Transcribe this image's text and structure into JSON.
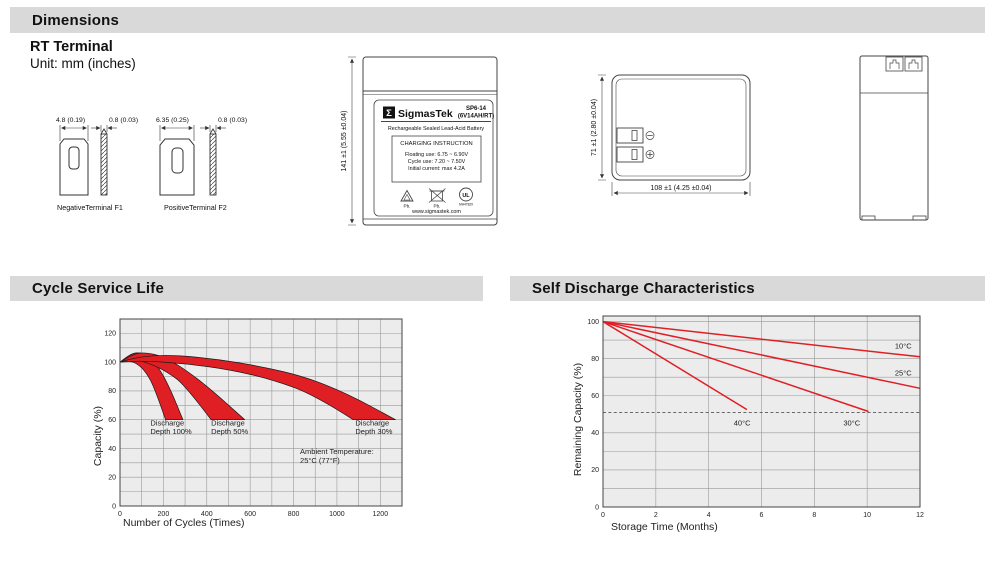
{
  "sections": {
    "dimensions_title": "Dimensions",
    "cycle_title": "Cycle Service Life",
    "self_discharge_title": "Self Discharge Characteristics"
  },
  "dimensions_block": {
    "subtitle": "RT Terminal",
    "unit_note": "Unit: mm (inches)"
  },
  "terminals": {
    "negative": {
      "caption": "NegativeTerminal F1",
      "width_dim": "4.8 (0.19)",
      "thickness_dim": "0.8 (0.03)"
    },
    "positive": {
      "caption": "PositiveTerminal F2",
      "width_dim": "6.35 (0.25)",
      "thickness_dim": "0.8 (0.03)"
    }
  },
  "front_view": {
    "height_dim": "141 ±1 (5.55 ±0.04)",
    "label": {
      "logo_glyph": "Σ",
      "brand": "SigmasTek",
      "model": "SP6-14",
      "spec": "(6V14AH/RT)",
      "type_line": "Rechargeable Sealed Lead-Acid Battery",
      "charging_title": "CHARGING INSTRUCTION",
      "charging_line1": "Floating use: 6.75 ~ 6.90V",
      "charging_line2": "Cycle use: 7.20 ~ 7.50V",
      "charging_line3": "Initial current: max 4.2A",
      "pb_recycle": "Pb.",
      "pb_bin": "Pb.",
      "ul_mark": "UL",
      "ul_code": "MH47829",
      "website": "www.sigmastek.com"
    }
  },
  "top_view": {
    "height_dim": "71 ±1 (2.80 ±0.04)",
    "width_dim": "108 ±1 (4.25 ±0.04)",
    "neg_symbol": "minus",
    "pos_symbol": "plus"
  },
  "colors": {
    "accent_red": "#e01f24",
    "bar_bg": "#d9d9d9",
    "plot_bg": "#ececec",
    "grid": "#9a9a9a"
  },
  "chart_data": [
    {
      "type": "area",
      "title": "Cycle Service Life",
      "xlabel": "Number of Cycles (Times)",
      "ylabel": "Capacity (%)",
      "xlim": [
        0,
        1300
      ],
      "ylim": [
        0,
        130
      ],
      "xticks": [
        0,
        200,
        400,
        600,
        800,
        1000,
        1200
      ],
      "yticks": [
        0,
        20,
        40,
        60,
        80,
        100,
        120
      ],
      "grid_step_x": 100,
      "grid_step_y": 10,
      "grid": true,
      "legend": "none",
      "bands": [
        {
          "id": "discharge-depth-100",
          "name": "Discharge Depth 100%",
          "upper": [
            [
              0,
              100
            ],
            [
              40,
              105
            ],
            [
              80,
              107
            ],
            [
              130,
              105
            ],
            [
              180,
              96
            ],
            [
              230,
              82
            ],
            [
              290,
              60
            ]
          ],
          "lower": [
            [
              0,
              100
            ],
            [
              40,
              101
            ],
            [
              80,
              99
            ],
            [
              120,
              93
            ],
            [
              160,
              82
            ],
            [
              210,
              60
            ]
          ]
        },
        {
          "id": "discharge-depth-50",
          "name": "Discharge Depth 50%",
          "upper": [
            [
              0,
              100
            ],
            [
              50,
              105
            ],
            [
              110,
              107
            ],
            [
              200,
              104
            ],
            [
              300,
              95
            ],
            [
              420,
              81
            ],
            [
              575,
              60
            ]
          ],
          "lower": [
            [
              0,
              100
            ],
            [
              60,
              102
            ],
            [
              140,
              99
            ],
            [
              220,
              93
            ],
            [
              300,
              84
            ],
            [
              420,
              60
            ]
          ]
        },
        {
          "id": "discharge-depth-30",
          "name": "Discharge Depth 30%",
          "upper": [
            [
              0,
              100
            ],
            [
              80,
              104
            ],
            [
              250,
              105
            ],
            [
              450,
              102
            ],
            [
              650,
              97
            ],
            [
              850,
              90
            ],
            [
              1050,
              78
            ],
            [
              1270,
              60
            ]
          ],
          "lower": [
            [
              0,
              100
            ],
            [
              100,
              101
            ],
            [
              300,
              99
            ],
            [
              500,
              95
            ],
            [
              700,
              88
            ],
            [
              900,
              77
            ],
            [
              1075,
              60
            ]
          ]
        }
      ],
      "labels": [
        {
          "lines": [
            "Discharge",
            "Depth 100%"
          ],
          "x": 140,
          "y": 56
        },
        {
          "lines": [
            "Discharge",
            "Depth 50%"
          ],
          "x": 420,
          "y": 56
        },
        {
          "lines": [
            "Discharge",
            "Depth 30%"
          ],
          "x": 1085,
          "y": 56
        },
        {
          "lines": [
            "Ambient Temperature:",
            "25°C (77°F)"
          ],
          "x": 830,
          "y": 36
        }
      ]
    },
    {
      "type": "line",
      "title": "Self Discharge Characteristics",
      "xlabel": "Storage Time (Months)",
      "ylabel": "Remaining Capacity (%)",
      "xlim": [
        0,
        12
      ],
      "ylim": [
        0,
        103
      ],
      "xticks": [
        0,
        2,
        4,
        6,
        8,
        10,
        12
      ],
      "yticks": [
        0,
        20,
        40,
        60,
        80,
        100
      ],
      "grid_step_x": 2,
      "grid_step_y": 10,
      "skip_grid_y": [
        50
      ],
      "dashed_line_y": 51,
      "grid": true,
      "legend": "inline-labels",
      "series": [
        {
          "id": "line-10c",
          "name": "10°C",
          "points": [
            [
              0,
              100
            ],
            [
              12,
              81
            ]
          ]
        },
        {
          "id": "line-25c",
          "name": "25°C",
          "points": [
            [
              0,
              100
            ],
            [
              12,
              64
            ]
          ]
        },
        {
          "id": "line-30c",
          "name": "30°C",
          "points": [
            [
              0,
              100
            ],
            [
              10.05,
              51.5
            ]
          ]
        },
        {
          "id": "line-40c",
          "name": "40°C",
          "points": [
            [
              0,
              100
            ],
            [
              5.45,
              52.5
            ]
          ]
        }
      ],
      "labels": [
        {
          "lines": [
            "10°C"
          ],
          "x": 11.05,
          "y": 85.5
        },
        {
          "lines": [
            "25°C"
          ],
          "x": 11.05,
          "y": 71
        },
        {
          "lines": [
            "40°C"
          ],
          "x": 4.95,
          "y": 44
        },
        {
          "lines": [
            "30°C"
          ],
          "x": 9.1,
          "y": 44
        }
      ]
    }
  ]
}
